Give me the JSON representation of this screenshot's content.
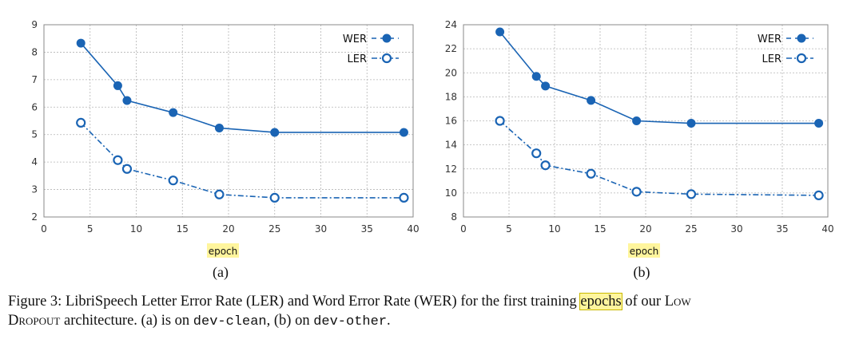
{
  "chart_data": [
    {
      "type": "line",
      "panel_label": "(a)",
      "xlabel": "epoch",
      "xlim": [
        0,
        40
      ],
      "ylim": [
        2,
        9
      ],
      "xticks": [
        0,
        5,
        10,
        15,
        20,
        25,
        30,
        35,
        40
      ],
      "yticks": [
        2,
        3,
        4,
        5,
        6,
        7,
        8,
        9
      ],
      "grid": true,
      "legend_position": "top-right",
      "x": [
        4,
        8,
        9,
        14,
        19,
        25,
        39
      ],
      "series": [
        {
          "name": "WER",
          "style": "solid",
          "marker": "filled",
          "values": [
            8.33,
            6.78,
            6.24,
            5.8,
            5.24,
            5.08,
            5.08
          ]
        },
        {
          "name": "LER",
          "style": "dash-dot",
          "marker": "open",
          "values": [
            5.43,
            4.07,
            3.75,
            3.33,
            2.82,
            2.7,
            2.7
          ]
        }
      ]
    },
    {
      "type": "line",
      "panel_label": "(b)",
      "xlabel": "epoch",
      "xlim": [
        0,
        40
      ],
      "ylim": [
        8,
        24
      ],
      "xticks": [
        0,
        5,
        10,
        15,
        20,
        25,
        30,
        35,
        40
      ],
      "yticks": [
        8,
        10,
        12,
        14,
        16,
        18,
        20,
        22,
        24
      ],
      "grid": true,
      "legend_position": "top-right",
      "x": [
        4,
        8,
        9,
        14,
        19,
        25,
        39
      ],
      "series": [
        {
          "name": "WER",
          "style": "solid",
          "marker": "filled",
          "values": [
            23.4,
            19.7,
            18.9,
            17.7,
            16.0,
            15.8,
            15.8
          ]
        },
        {
          "name": "LER",
          "style": "dash-dot",
          "marker": "open",
          "values": [
            16.0,
            13.3,
            12.3,
            11.6,
            10.1,
            9.9,
            9.8
          ]
        }
      ]
    }
  ],
  "colors": {
    "series": "#1a64b4",
    "grid": "#b5b5b5",
    "axis": "#888888",
    "highlight": "#fff59d"
  },
  "caption": {
    "p1": "Figure 3:  LibriSpeech Letter Error Rate (LER) and Word Error Rate (WER) for the first training ",
    "hl": "epochs",
    "p2": " of our ",
    "sc1": "Low",
    "sc2": "Dropout",
    "p3": " architecture. (a) is on ",
    "code1": "dev-clean",
    "p4": ", (b) on ",
    "code2": "dev-other",
    "p5": "."
  }
}
